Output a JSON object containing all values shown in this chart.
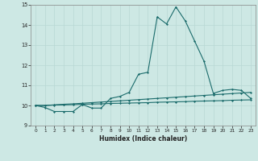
{
  "xlabel": "Humidex (Indice chaleur)",
  "background_color": "#cde8e4",
  "grid_color": "#b8d8d4",
  "line_color": "#1a6b6b",
  "xlim": [
    -0.5,
    23.5
  ],
  "ylim": [
    9,
    15
  ],
  "x_ticks": [
    0,
    1,
    2,
    3,
    4,
    5,
    6,
    7,
    8,
    9,
    10,
    11,
    12,
    13,
    14,
    15,
    16,
    17,
    18,
    19,
    20,
    21,
    22,
    23
  ],
  "y_ticks": [
    9,
    10,
    11,
    12,
    13,
    14,
    15
  ],
  "series1_x": [
    0,
    1,
    2,
    3,
    4,
    5,
    6,
    7,
    8,
    9,
    10,
    11,
    12,
    13,
    14,
    15,
    16,
    17,
    18,
    19,
    20,
    21,
    22,
    23
  ],
  "series1_y": [
    10.0,
    9.9,
    9.7,
    9.7,
    9.7,
    10.05,
    9.87,
    9.87,
    10.35,
    10.45,
    10.65,
    11.55,
    11.65,
    14.4,
    14.05,
    14.9,
    14.2,
    13.2,
    12.2,
    10.6,
    10.75,
    10.8,
    10.75,
    10.35
  ],
  "series2_x": [
    0,
    1,
    2,
    3,
    4,
    5,
    6,
    7,
    8,
    9,
    10,
    11,
    12,
    13,
    14,
    15,
    16,
    17,
    18,
    19,
    20,
    21,
    22,
    23
  ],
  "series2_y": [
    10.0,
    10.0,
    10.03,
    10.06,
    10.08,
    10.11,
    10.14,
    10.17,
    10.2,
    10.23,
    10.26,
    10.29,
    10.32,
    10.35,
    10.38,
    10.41,
    10.44,
    10.47,
    10.5,
    10.53,
    10.56,
    10.59,
    10.62,
    10.65
  ],
  "series3_x": [
    0,
    1,
    2,
    3,
    4,
    5,
    6,
    7,
    8,
    9,
    10,
    11,
    12,
    13,
    14,
    15,
    16,
    17,
    18,
    19,
    20,
    21,
    22,
    23
  ],
  "series3_y": [
    10.0,
    10.0,
    10.02,
    10.03,
    10.04,
    10.06,
    10.07,
    10.08,
    10.1,
    10.11,
    10.12,
    10.13,
    10.14,
    10.16,
    10.17,
    10.18,
    10.19,
    10.21,
    10.22,
    10.23,
    10.24,
    10.26,
    10.27,
    10.28
  ]
}
